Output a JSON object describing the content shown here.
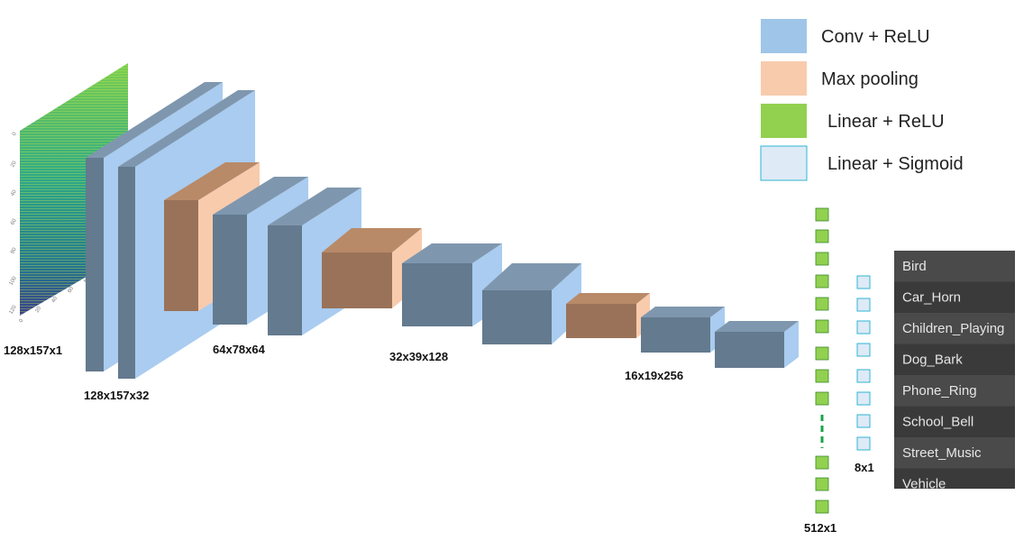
{
  "legend": [
    {
      "label": "Conv + ReLU"
    },
    {
      "label": "Max pooling"
    },
    {
      "label": "Linear + ReLU"
    },
    {
      "label": "Linear + Sigmoid"
    }
  ],
  "spectrogram": {
    "yticks": [
      "0",
      "20",
      "40",
      "60",
      "80",
      "100",
      "120"
    ],
    "xticks": [
      "0",
      "20",
      "40",
      "60",
      "80"
    ]
  },
  "shapes": {
    "input": "128x157x1",
    "conv1": "128x157x32",
    "block1": "64x78x64",
    "block2": "32x39x128",
    "block3": "16x19x256",
    "fc1": "512x1",
    "fc2": "8x1"
  },
  "classes": [
    "Bird",
    "Car_Horn",
    "Children_Playing",
    "Dog_Bark",
    "Phone_Ring",
    "School_Bell",
    "Street_Music",
    "Vehicle"
  ]
}
